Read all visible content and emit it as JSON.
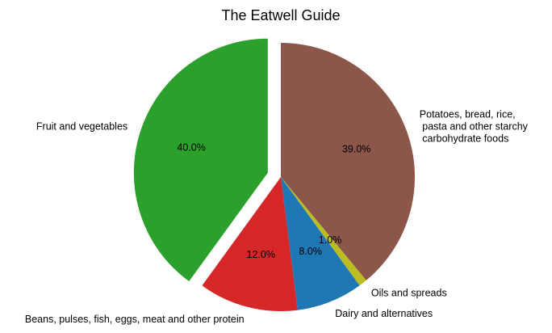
{
  "chart_data": {
    "type": "pie",
    "title": "The Eatwell Guide",
    "slices": [
      {
        "label": "Potatoes, bread, rice,\n pasta and other starchy\n carbohydrate foods",
        "value": 39.0,
        "pct_label": "39.0%",
        "color": "#8c564b",
        "exploded": false
      },
      {
        "label": "Oils and spreads",
        "value": 1.0,
        "pct_label": "1.0%",
        "color": "#bcbd22",
        "exploded": false
      },
      {
        "label": "Dairy and alternatives",
        "value": 8.0,
        "pct_label": "8.0%",
        "color": "#1f77b4",
        "exploded": false
      },
      {
        "label": "Beans, pulses, fish, eggs, meat and other protein",
        "value": 12.0,
        "pct_label": "12.0%",
        "color": "#d62728",
        "exploded": false
      },
      {
        "label": "Fruit and vegetables",
        "value": 40.0,
        "pct_label": "40.0%",
        "color": "#2ca02c",
        "exploded": true
      }
    ],
    "start_angle": "top",
    "direction": "clockwise"
  }
}
